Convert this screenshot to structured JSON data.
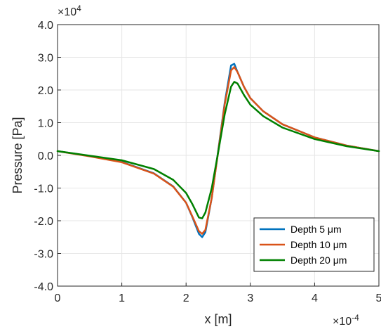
{
  "chart_data": {
    "type": "line",
    "xlabel": "x [m]",
    "ylabel": "Pressure [Pa]",
    "x_multiplier_label": "×10",
    "x_multiplier_exp": "-4",
    "y_multiplier_label": "×10",
    "y_multiplier_exp": "4",
    "xlim": [
      0,
      5
    ],
    "ylim": [
      -4,
      4
    ],
    "grid": true,
    "legend_position": "bottom-right",
    "x_ticks": [
      "0",
      "1",
      "2",
      "3",
      "4",
      "5"
    ],
    "y_ticks": [
      "4.0",
      "3.0",
      "2.0",
      "1.0",
      "0.0",
      "-1.0",
      "-2.0",
      "-3.0",
      "-4.0"
    ],
    "x": [
      0,
      0.5,
      1.0,
      1.5,
      1.8,
      2.0,
      2.1,
      2.2,
      2.25,
      2.3,
      2.4,
      2.5,
      2.6,
      2.7,
      2.75,
      2.8,
      2.9,
      3.0,
      3.2,
      3.5,
      4.0,
      4.5,
      5.0
    ],
    "series": [
      {
        "name": "Depth 5 μm",
        "color": "#0072BD",
        "values": [
          0.13,
          -0.02,
          -0.2,
          -0.55,
          -0.95,
          -1.45,
          -1.9,
          -2.4,
          -2.5,
          -2.35,
          -1.3,
          0.15,
          1.6,
          2.75,
          2.8,
          2.55,
          2.1,
          1.75,
          1.35,
          0.95,
          0.55,
          0.3,
          0.13
        ]
      },
      {
        "name": "Depth 10 μm",
        "color": "#D95319",
        "values": [
          0.13,
          -0.03,
          -0.21,
          -0.56,
          -0.96,
          -1.45,
          -1.88,
          -2.32,
          -2.4,
          -2.28,
          -1.3,
          0.12,
          1.55,
          2.6,
          2.7,
          2.55,
          2.1,
          1.75,
          1.35,
          0.95,
          0.55,
          0.3,
          0.13
        ]
      },
      {
        "name": "Depth 20 μm",
        "color": "#008000",
        "values": [
          0.13,
          -0.01,
          -0.15,
          -0.42,
          -0.75,
          -1.15,
          -1.5,
          -1.9,
          -1.93,
          -1.75,
          -1.0,
          0.1,
          1.25,
          2.1,
          2.25,
          2.2,
          1.85,
          1.55,
          1.2,
          0.85,
          0.5,
          0.28,
          0.13
        ]
      }
    ]
  }
}
